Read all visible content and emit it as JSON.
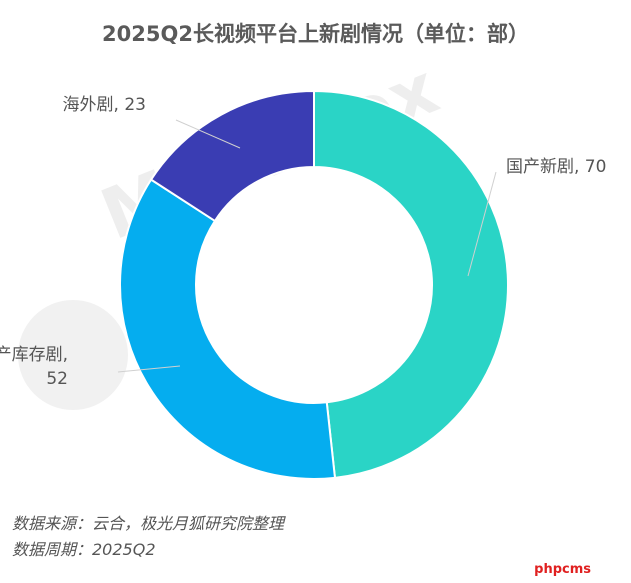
{
  "title": "2025Q2长视频平台上新剧情况（单位：部）",
  "watermark": "MoonFox",
  "footer": {
    "source": "数据来源：云合，极光月狐研究院整理",
    "period": "数据周期：2025Q2"
  },
  "brand": "phpcms",
  "chart_data": {
    "type": "pie",
    "donut": true,
    "title": "2025Q2长视频平台上新剧情况（单位：部）",
    "unit": "部",
    "slices": [
      {
        "label": "国产新剧",
        "value": 70,
        "color": "#2ad4c6",
        "display": [
          "国产新剧, 70"
        ]
      },
      {
        "label": "国产库存剧",
        "value": 52,
        "color": "#05adef",
        "display": [
          "国产库存剧,",
          "52"
        ]
      },
      {
        "label": "海外剧",
        "value": 23,
        "color": "#3a3db3",
        "display": [
          "海外剧, 23"
        ]
      }
    ]
  }
}
